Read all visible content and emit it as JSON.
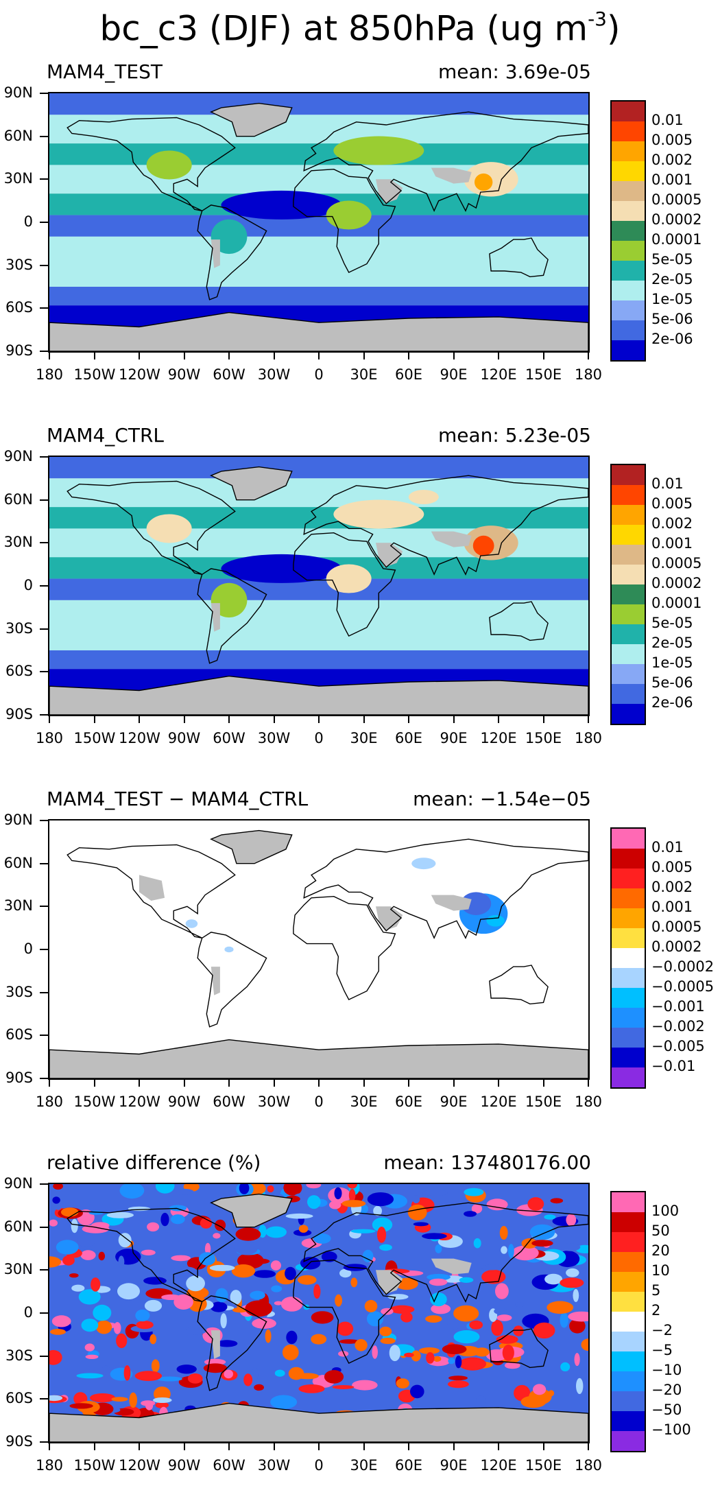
{
  "title": "bc_c3 (DJF) at 850hPa (ug m",
  "title_exponent": "-3",
  "title_close": ")",
  "lat_labels": [
    "90N",
    "60N",
    "30N",
    "0",
    "30S",
    "60S",
    "90S"
  ],
  "lon_labels": [
    "180",
    "150W",
    "120W",
    "90W",
    "60W",
    "30W",
    "0",
    "30E",
    "60E",
    "90E",
    "120E",
    "150E",
    "180"
  ],
  "panels": [
    {
      "name": "MAM4_TEST",
      "mean": "mean: 3.69e-05",
      "colorbar_labels": [
        "0.01",
        "0.005",
        "0.002",
        "0.001",
        "0.0005",
        "0.0002",
        "0.0001",
        "5e-05",
        "2e-05",
        "1e-05",
        "5e-06",
        "2e-06"
      ],
      "colorbar_colors": [
        "#b22222",
        "#ff4500",
        "#ffa500",
        "#ffd700",
        "#deb887",
        "#f5deb3",
        "#2e8b57",
        "#9acd32",
        "#20b2aa",
        "#afeeee",
        "#87a8f5",
        "#4169e1",
        "#0000cd"
      ]
    },
    {
      "name": "MAM4_CTRL",
      "mean": "mean: 5.23e-05",
      "colorbar_labels": [
        "0.01",
        "0.005",
        "0.002",
        "0.001",
        "0.0005",
        "0.0002",
        "0.0001",
        "5e-05",
        "2e-05",
        "1e-05",
        "5e-06",
        "2e-06"
      ],
      "colorbar_colors": [
        "#b22222",
        "#ff4500",
        "#ffa500",
        "#ffd700",
        "#deb887",
        "#f5deb3",
        "#2e8b57",
        "#9acd32",
        "#20b2aa",
        "#afeeee",
        "#87a8f5",
        "#4169e1",
        "#0000cd"
      ]
    },
    {
      "name": "MAM4_TEST − MAM4_CTRL",
      "mean": "mean: −1.54e−05",
      "colorbar_labels": [
        "0.01",
        "0.005",
        "0.002",
        "0.001",
        "0.0005",
        "0.0002",
        "−0.0002",
        "−0.0005",
        "−0.001",
        "−0.002",
        "−0.005",
        "−0.01"
      ],
      "colorbar_colors": [
        "#ff69b4",
        "#cc0000",
        "#ff2020",
        "#ff6a00",
        "#ffa500",
        "#ffe040",
        "#ffffff",
        "#a8d4ff",
        "#00bfff",
        "#1e90ff",
        "#4169e1",
        "#0000cd",
        "#8a2be2"
      ]
    },
    {
      "name": "relative difference (%)",
      "mean": "mean: 137480176.00",
      "colorbar_labels": [
        "100",
        "50",
        "20",
        "10",
        "5",
        "2",
        "−2",
        "−5",
        "−10",
        "−20",
        "−50",
        "−100"
      ],
      "colorbar_colors": [
        "#ff69b4",
        "#cc0000",
        "#ff2020",
        "#ff6a00",
        "#ffa500",
        "#ffe040",
        "#ffffff",
        "#a8d4ff",
        "#00bfff",
        "#1e90ff",
        "#4169e1",
        "#0000cd",
        "#8a2be2"
      ]
    }
  ]
}
